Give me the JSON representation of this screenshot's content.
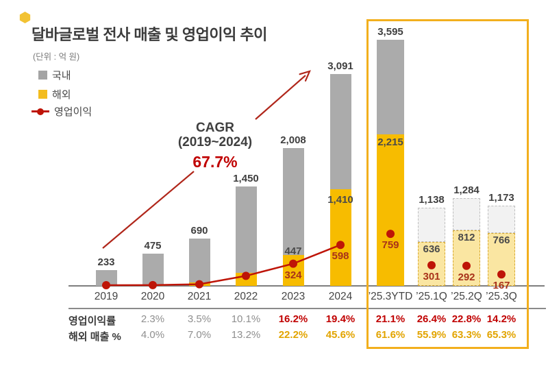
{
  "header": {
    "title": "달바글로벌 전사 매출 및 영업이익 추이",
    "unit_label": "(단위 : 억 원)"
  },
  "legend": [
    {
      "label": "국내",
      "marker": "square",
      "color": "#A4A4A4"
    },
    {
      "label": "해외",
      "marker": "square",
      "color": "#F3BC1E"
    },
    {
      "label": "영업이익",
      "marker": "line-dot",
      "color": "#BE1407"
    }
  ],
  "cagr": {
    "line1": "CAGR",
    "line2": "(2019~2024)",
    "value": "67.7%"
  },
  "chart_data": {
    "type": "stacked-bar-with-line",
    "title": "달바글로벌 전사 매출 및 영업이익 추이",
    "unit": "억 원",
    "stack_series": [
      "국내",
      "해외"
    ],
    "line_series": "영업이익",
    "categories": [
      "2019",
      "2020",
      "2021",
      "2022",
      "2023",
      "2024",
      "’25.3YTD",
      "’25.1Q",
      "’25.2Q",
      "’25.3Q"
    ],
    "ylim": [
      0,
      3600
    ],
    "grid": false,
    "bars": [
      {
        "category": "2019",
        "total": 233,
        "total_label": "233",
        "overseas": 0,
        "op": 0,
        "style": "solid"
      },
      {
        "category": "2020",
        "total": 475,
        "total_label": "475",
        "overseas": 19,
        "op": 11,
        "style": "solid"
      },
      {
        "category": "2021",
        "total": 690,
        "total_label": "690",
        "overseas": 48,
        "op": 24,
        "style": "solid"
      },
      {
        "category": "2022",
        "total": 1450,
        "total_label": "1,450",
        "overseas": 191,
        "op": 146,
        "style": "solid"
      },
      {
        "category": "2023",
        "total": 2008,
        "total_label": "2,008",
        "overseas": 447,
        "overseas_label": "447",
        "op": 324,
        "op_label": "324",
        "style": "solid"
      },
      {
        "category": "2024",
        "total": 3091,
        "total_label": "3,091",
        "overseas": 1410,
        "overseas_label": "1,410",
        "op": 598,
        "op_label": "598",
        "style": "solid"
      },
      {
        "category": "’25.3YTD",
        "total": 3595,
        "total_label": "3,595",
        "overseas": 2215,
        "overseas_label": "2,215",
        "op": 759,
        "op_label": "759",
        "style": "solid"
      },
      {
        "category": "’25.1Q",
        "total": 1138,
        "total_label": "1,138",
        "overseas": 636,
        "overseas_label": "636",
        "op": 301,
        "op_label": "301",
        "style": "dashed"
      },
      {
        "category": "’25.2Q",
        "total": 1284,
        "total_label": "1,284",
        "overseas": 812,
        "overseas_label": "812",
        "op": 292,
        "op_label": "292",
        "style": "dashed"
      },
      {
        "category": "’25.3Q",
        "total": 1173,
        "total_label": "1,173",
        "overseas": 766,
        "overseas_label": "766",
        "op": 167,
        "op_label": "167",
        "style": "dashed"
      }
    ],
    "line_connected_categories": [
      "2019",
      "2020",
      "2021",
      "2022",
      "2023",
      "2024"
    ],
    "highlight_box_categories": [
      "’25.3YTD",
      "’25.1Q",
      "’25.2Q",
      "’25.3Q"
    ]
  },
  "table": {
    "rows": [
      {
        "label": "영업이익률",
        "values": [
          "2.3%",
          "3.5%",
          "10.1%",
          "16.2%",
          "19.4%",
          "21.1%",
          "26.4%",
          "22.8%",
          "14.2%"
        ],
        "value_colors": [
          "gray",
          "gray",
          "gray",
          "red",
          "red",
          "red",
          "red",
          "red",
          "red"
        ]
      },
      {
        "label": "해외 매출 %",
        "values": [
          "4.0%",
          "7.0%",
          "13.2%",
          "22.2%",
          "45.6%",
          "61.6%",
          "55.9%",
          "63.3%",
          "65.3%"
        ],
        "value_colors": [
          "gray",
          "gray",
          "gray",
          "gold",
          "gold",
          "gold",
          "gold",
          "gold",
          "gold"
        ]
      }
    ]
  },
  "colors": {
    "domestic_bar": "#ABABAB",
    "overseas_bar": "#F7BC00",
    "domestic_bar_est_fill": "#F2F2F2",
    "domestic_bar_est_border": "#BDBDBD",
    "overseas_bar_est_fill": "#FAE6A2",
    "overseas_bar_est_border": "#D8A82E",
    "op_line": "#BE1407",
    "op_label": "#A8321A",
    "arrow": "#B0261A",
    "accent_red": "#C00000",
    "accent_gold": "#E2A400",
    "gray_value_text": "#8F8F8F",
    "highlight_border": "#F2AF1D"
  }
}
